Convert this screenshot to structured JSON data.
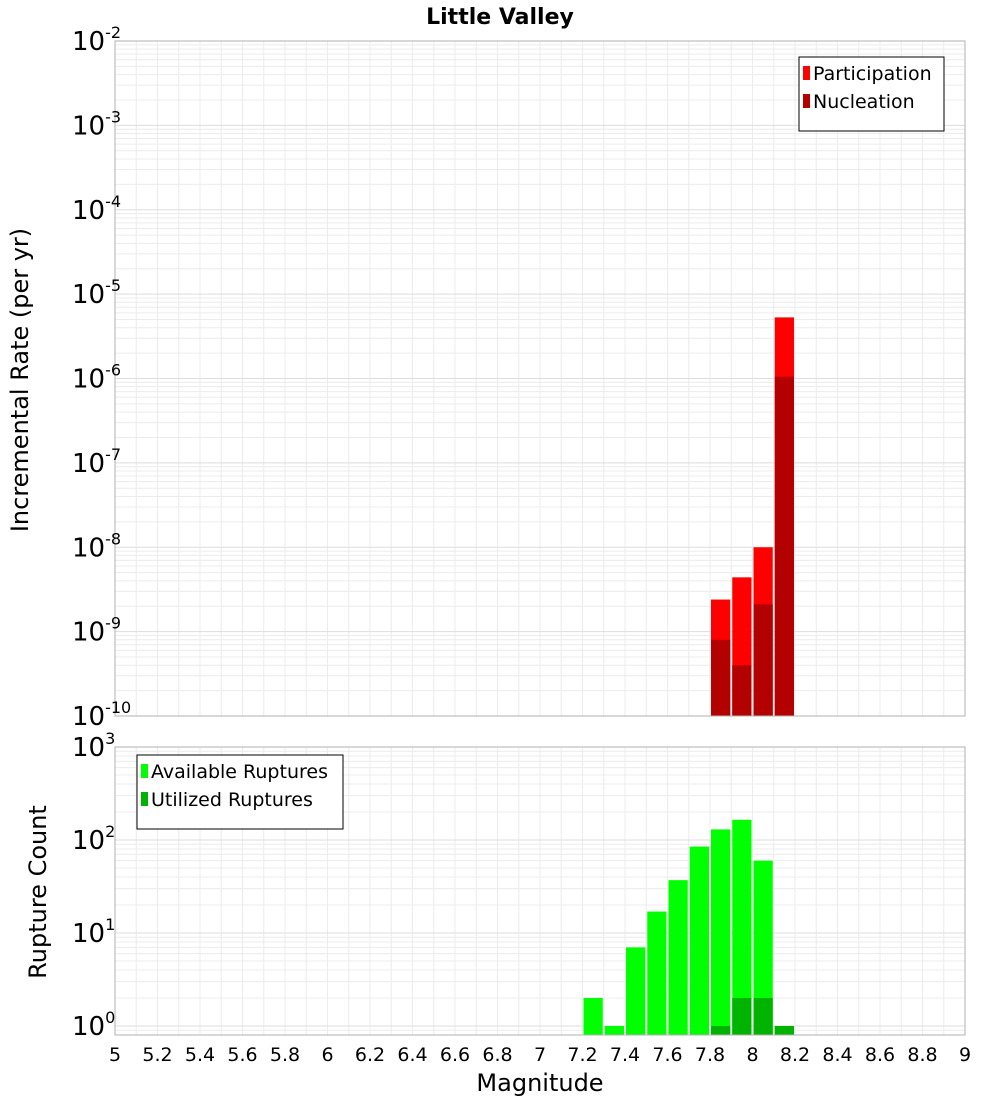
{
  "chart_data": [
    {
      "type": "bar",
      "title": "Little Valley",
      "ylabel": "Incremental Rate (per yr)",
      "yscale": "log",
      "ylim": [
        1e-10,
        0.01
      ],
      "xlim": [
        5,
        9
      ],
      "bar_width": 0.1,
      "overlay": true,
      "grid": true,
      "legend_position": "top-right",
      "series": [
        {
          "name": "Participation",
          "color": "#ff0000",
          "x": [
            7.85,
            7.95,
            8.05,
            8.15
          ],
          "values": [
            2.4e-09,
            4.4e-09,
            1e-08,
            5.3e-06
          ]
        },
        {
          "name": "Nucleation",
          "color": "#b30000",
          "x": [
            7.85,
            7.95,
            8.05,
            8.15
          ],
          "values": [
            8e-10,
            4e-10,
            2.1e-09,
            1.05e-06
          ]
        }
      ],
      "y_ticks": [
        {
          "base": "10",
          "exp": "-2"
        },
        {
          "base": "10",
          "exp": "-3"
        },
        {
          "base": "10",
          "exp": "-4"
        },
        {
          "base": "10",
          "exp": "-5"
        },
        {
          "base": "10",
          "exp": "-6"
        },
        {
          "base": "10",
          "exp": "-7"
        },
        {
          "base": "10",
          "exp": "-8"
        },
        {
          "base": "10",
          "exp": "-9"
        },
        {
          "base": "10",
          "exp": "-10"
        }
      ]
    },
    {
      "type": "bar",
      "xlabel": "Magnitude",
      "ylabel": "Rupture Count",
      "yscale": "log",
      "ylim": [
        0.8,
        1000
      ],
      "xlim": [
        5,
        9
      ],
      "bar_width": 0.1,
      "overlay": true,
      "grid": true,
      "legend_position": "top-left",
      "series": [
        {
          "name": "Available Ruptures",
          "color": "#00ff00",
          "x": [
            7.25,
            7.35,
            7.45,
            7.55,
            7.65,
            7.75,
            7.85,
            7.95,
            8.05,
            8.15
          ],
          "values": [
            2,
            1,
            7,
            17,
            37,
            85,
            130,
            165,
            60,
            1
          ]
        },
        {
          "name": "Utilized Ruptures",
          "color": "#00b300",
          "x": [
            7.85,
            7.95,
            8.05,
            8.15
          ],
          "values": [
            1,
            2,
            2,
            1
          ]
        }
      ],
      "y_ticks": [
        {
          "base": "10",
          "exp": "3"
        },
        {
          "base": "10",
          "exp": "2"
        },
        {
          "base": "10",
          "exp": "1"
        },
        {
          "base": "10",
          "exp": "0"
        }
      ],
      "x_ticks": [
        "5",
        "5.2",
        "5.4",
        "5.6",
        "5.8",
        "6",
        "6.2",
        "6.4",
        "6.6",
        "6.8",
        "7",
        "7.2",
        "7.4",
        "7.6",
        "7.8",
        "8",
        "8.2",
        "8.4",
        "8.6",
        "8.8",
        "9"
      ]
    }
  ]
}
